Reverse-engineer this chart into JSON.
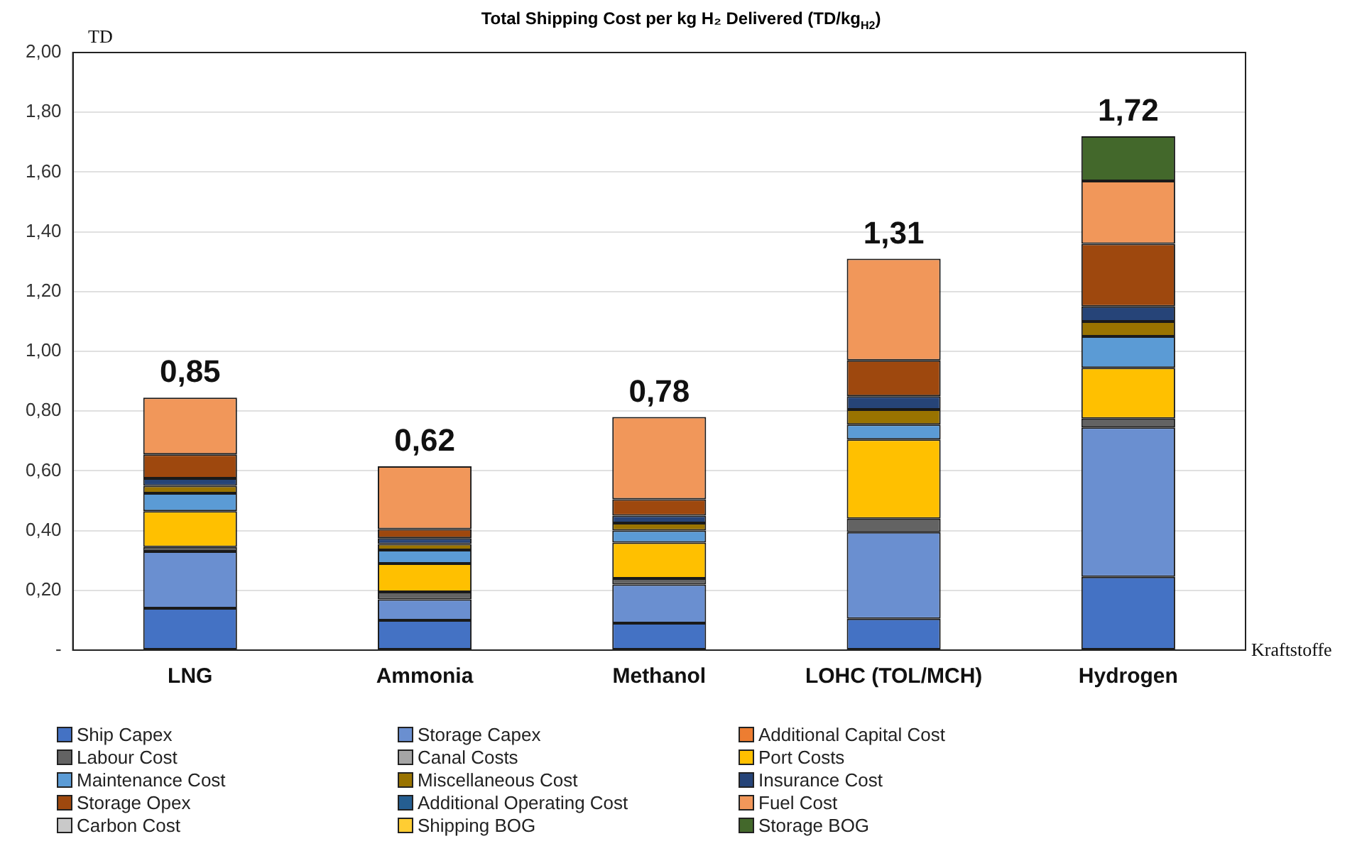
{
  "chart_data": {
    "type": "bar",
    "stacked": true,
    "title": "Total Shipping Cost per kg H₂ Delivered (TD/kg$_{H2}$)",
    "ylabel": "TD",
    "xlabel": "Kraftstoffe",
    "categories": [
      "LNG",
      "Ammonia",
      "Methanol",
      "LOHC (TOL/MCH)",
      "Hydrogen"
    ],
    "series": [
      {
        "name": "Ship Capex",
        "color": "#4472c4",
        "values": [
          0.14,
          0.1,
          0.09,
          0.105,
          0.245
        ]
      },
      {
        "name": "Storage Capex",
        "color": "#6a8fd0",
        "values": [
          0.19,
          0.07,
          0.13,
          0.29,
          0.5
        ]
      },
      {
        "name": "Additional Capital Cost",
        "color": "#ed7d31",
        "values": [
          0,
          0,
          0,
          0,
          0
        ]
      },
      {
        "name": "Labour Cost",
        "color": "#636363",
        "values": [
          0.015,
          0.025,
          0.02,
          0.045,
          0.03
        ]
      },
      {
        "name": "Canal Costs",
        "color": "#a5a5a5",
        "values": [
          0,
          0,
          0,
          0,
          0
        ]
      },
      {
        "name": "Port Costs",
        "color": "#ffc000",
        "values": [
          0.12,
          0.095,
          0.12,
          0.265,
          0.17
        ]
      },
      {
        "name": "Maintenance Cost",
        "color": "#5b9bd5",
        "values": [
          0.06,
          0.045,
          0.04,
          0.05,
          0.105
        ]
      },
      {
        "name": "Miscellaneous Cost",
        "color": "#997300",
        "values": [
          0.025,
          0.02,
          0.025,
          0.05,
          0.05
        ]
      },
      {
        "name": "Insurance Cost",
        "color": "#264478",
        "values": [
          0.025,
          0.02,
          0.025,
          0.045,
          0.05
        ]
      },
      {
        "name": "Storage Opex",
        "color": "#9e480e",
        "values": [
          0.08,
          0.03,
          0.055,
          0.12,
          0.21
        ]
      },
      {
        "name": "Additional Operating Cost",
        "color": "#255e91",
        "values": [
          0,
          0,
          0,
          0,
          0
        ]
      },
      {
        "name": "Fuel Cost",
        "color": "#f1975a",
        "values": [
          0.19,
          0.21,
          0.275,
          0.34,
          0.21
        ]
      },
      {
        "name": "Carbon Cost",
        "color": "#c9c9c9",
        "values": [
          0,
          0,
          0,
          0,
          0
        ]
      },
      {
        "name": "Shipping BOG",
        "color": "#ffcd33",
        "values": [
          0,
          0,
          0,
          0,
          0
        ]
      },
      {
        "name": "Storage BOG",
        "color": "#43682b",
        "values": [
          0,
          0,
          0,
          0,
          0.15
        ]
      }
    ],
    "totals": [
      "0,85",
      "0,62",
      "0,78",
      "1,31",
      "1,72"
    ],
    "ylim": [
      0,
      2
    ],
    "yticks": [
      {
        "value": 0,
        "label": "-"
      },
      {
        "value": 0.2,
        "label": "0,20"
      },
      {
        "value": 0.4,
        "label": "0,40"
      },
      {
        "value": 0.6,
        "label": "0,60"
      },
      {
        "value": 0.8,
        "label": "0,80"
      },
      {
        "value": 1,
        "label": "1,00"
      },
      {
        "value": 1.2,
        "label": "1,20"
      },
      {
        "value": 1.4,
        "label": "1,40"
      },
      {
        "value": 1.6,
        "label": "1,60"
      },
      {
        "value": 1.8,
        "label": "1,80"
      },
      {
        "value": 2,
        "label": "2,00"
      }
    ],
    "grid": "y",
    "legend": "bottom"
  }
}
